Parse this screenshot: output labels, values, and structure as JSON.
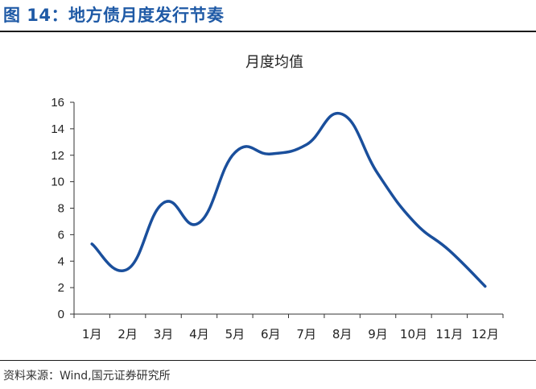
{
  "figure": {
    "title": "图 14：地方债月度发行节奏",
    "source": "资料来源：Wind,国元证券研究所"
  },
  "colors": {
    "accent": "#1f5aa6",
    "line": "#1a4f9c"
  },
  "chart_data": {
    "type": "line",
    "title": "月度均值",
    "categories": [
      "1月",
      "2月",
      "3月",
      "4月",
      "5月",
      "6月",
      "7月",
      "8月",
      "9月",
      "10月",
      "11月",
      "12月"
    ],
    "series": [
      {
        "values": [
          5.3,
          3.4,
          8.4,
          6.9,
          12.2,
          12.1,
          12.8,
          15.1,
          10.6,
          7.0,
          4.8,
          2.1
        ]
      }
    ],
    "ylim": [
      0,
      16
    ],
    "yticks": [
      0,
      2,
      4,
      6,
      8,
      10,
      12,
      14,
      16
    ],
    "grid": false,
    "legend": "none",
    "smooth": true
  }
}
